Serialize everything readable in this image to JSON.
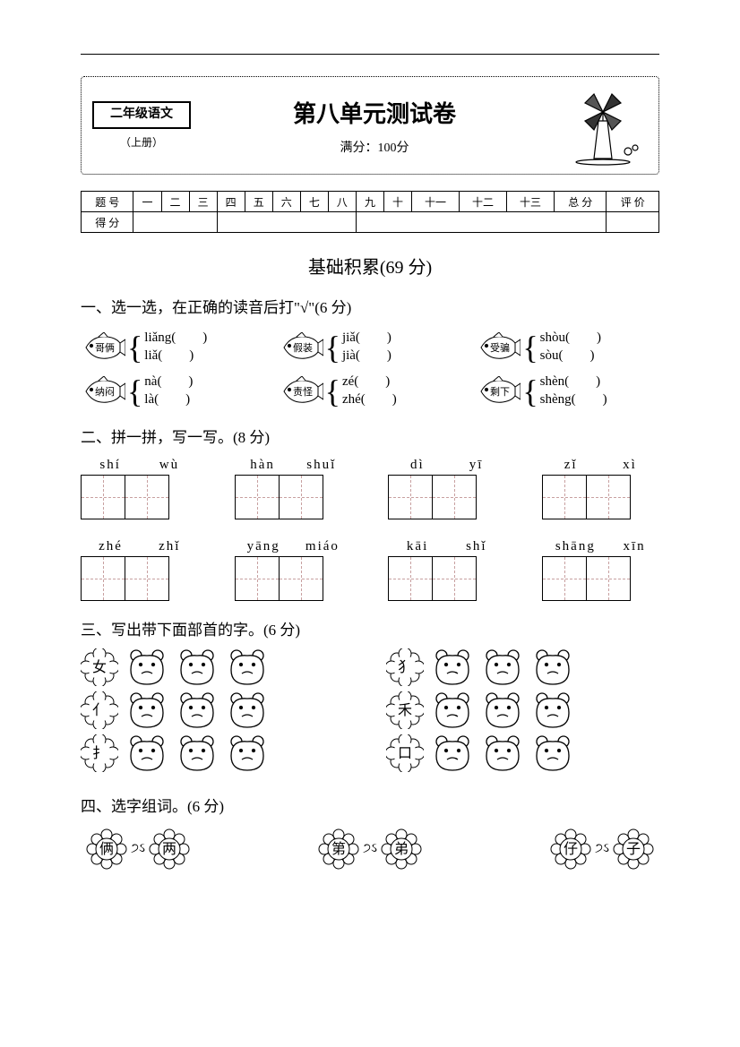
{
  "colors": {
    "page_bg": "#ffffff",
    "text": "#000000",
    "dashed": "#c8a0a0"
  },
  "header": {
    "grade": "二年级语文",
    "volume": "（上册）",
    "title": "第八单元测试卷",
    "fullscore": "满分：100分"
  },
  "score_table": {
    "row1_label": "题 号",
    "cols": [
      "一",
      "二",
      "三",
      "四",
      "五",
      "六",
      "七",
      "八",
      "九",
      "十",
      "十一",
      "十二",
      "十三",
      "总 分",
      "评 价"
    ],
    "row2_label": "得 分"
  },
  "section_title": "基础积累(69 分)",
  "q1": {
    "title": "一、选一选，在正确的读音后打\"√\"(6 分)",
    "items": [
      {
        "word": "哥俩",
        "p1": "liǎng(　　)",
        "p2": "liǎ(　　)"
      },
      {
        "word": "假装",
        "p1": "jiǎ(　　)",
        "p2": "jià(　　)"
      },
      {
        "word": "受骗",
        "p1": "shòu(　　)",
        "p2": "sòu(　　)"
      },
      {
        "word": "纳闷",
        "p1": "nà(　　)",
        "p2": "là(　　)"
      },
      {
        "word": "责怪",
        "p1": "zé(　　)",
        "p2": "zhé(　　)"
      },
      {
        "word": "剩下",
        "p1": "shèn(　　)",
        "p2": "shèng(　　)"
      }
    ]
  },
  "q2": {
    "title": "二、拼一拼，写一写。(8 分)",
    "items": [
      {
        "p1": "shí",
        "p2": "wù"
      },
      {
        "p1": "hàn",
        "p2": "shuǐ"
      },
      {
        "p1": "dì",
        "p2": "yī"
      },
      {
        "p1": "zǐ",
        "p2": "xì"
      },
      {
        "p1": "zhé",
        "p2": "zhǐ"
      },
      {
        "p1": "yāng",
        "p2": "miáo"
      },
      {
        "p1": "kāi",
        "p2": "shǐ"
      },
      {
        "p1": "shāng",
        "p2": "xīn"
      }
    ]
  },
  "q3": {
    "title": "三、写出带下面部首的字。(6 分)",
    "left": [
      "女",
      "亻",
      "扌"
    ],
    "right": [
      "犭",
      "禾",
      "口"
    ]
  },
  "q4": {
    "title": "四、选字组词。(6 分)",
    "pairs": [
      {
        "a": "俩",
        "b": "两"
      },
      {
        "a": "第",
        "b": "弟"
      },
      {
        "a": "仔",
        "b": "子"
      }
    ]
  }
}
